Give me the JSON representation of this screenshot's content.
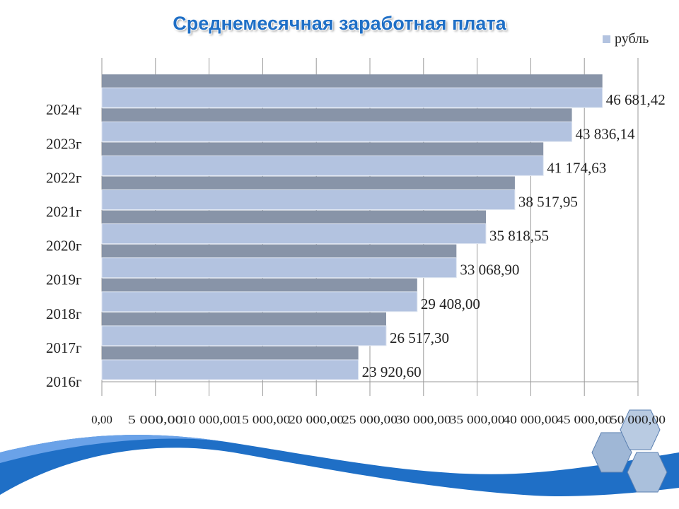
{
  "chart_data": {
    "type": "bar",
    "orientation": "horizontal",
    "title": "Среднемесячная заработная плата",
    "categories": [
      "2016г",
      "2017г",
      "2018г",
      "2019г",
      "2020г",
      "2021г",
      "2022г",
      "2023г",
      "2024г"
    ],
    "series": [
      {
        "name": "рубль",
        "values": [
          23920.6,
          26517.3,
          29408.0,
          33068.9,
          35818.55,
          38517.95,
          41174.63,
          43836.14,
          46681.42
        ]
      }
    ],
    "value_labels": [
      "23 920,60",
      "26 517,30",
      "29 408,00",
      "33 068,90",
      "35 818,55",
      "38 517,95",
      "41 174,63",
      "43 836,14",
      "46 681,42"
    ],
    "xlim": [
      0,
      50000
    ],
    "x_ticks": [
      0,
      5000,
      10000,
      15000,
      20000,
      25000,
      30000,
      35000,
      40000,
      45000,
      50000
    ],
    "x_tick_labels": [
      "0,00",
      "5 000,00",
      "10 000,00",
      "15 000,00",
      "20 000,00",
      "25 000,00",
      "30 000,00",
      "35 000,00",
      "40 000,00",
      "45 000,00",
      "50 000,00"
    ],
    "grid": true,
    "legend": "top-right",
    "colors": {
      "bar_face": "#b3c3e0",
      "bar_top": "#8894a8",
      "title": "#1f6fc6",
      "wave": "#1f6fc6"
    }
  }
}
